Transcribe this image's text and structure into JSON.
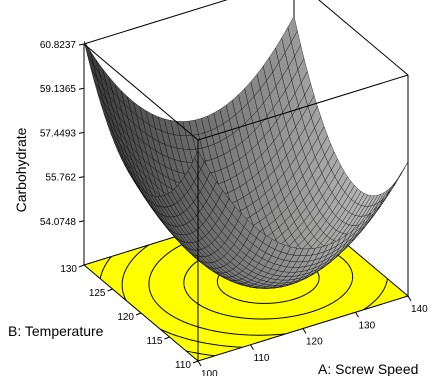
{
  "chart_data": {
    "type": "surface",
    "title": "",
    "zlabel": "Carbohydrate",
    "xlabel": "A: Screw Speed",
    "ylabel": "B: Temperature",
    "xlim": [
      100,
      140
    ],
    "ylim": [
      110,
      130
    ],
    "zlim": [
      52.39,
      60.8237
    ],
    "x_ticks": [
      "100",
      "110",
      "120",
      "130",
      "140"
    ],
    "y_ticks": [
      "110",
      "115",
      "120",
      "125",
      "130"
    ],
    "z_ticks": [
      "54.0748",
      "55.762",
      "57.4493",
      "59.1365",
      "60.8237"
    ],
    "surface": {
      "min_value": 52.39,
      "corner_values": {
        "x100_y130": 60.8237,
        "x140_y130": 59.3,
        "x100_y110": 60.3,
        "x140_y110": 57.4
      },
      "model": "quadratic"
    },
    "contour_levels": [
      53.0,
      54.0748,
      55.762,
      57.4493,
      59.1365
    ],
    "colors": {
      "surface_fill": "#8a8a8a",
      "surface_grid": "#000000",
      "floor_fill": "#ffff00",
      "contour_line": "#000000"
    },
    "grid": false,
    "legend": "none"
  }
}
